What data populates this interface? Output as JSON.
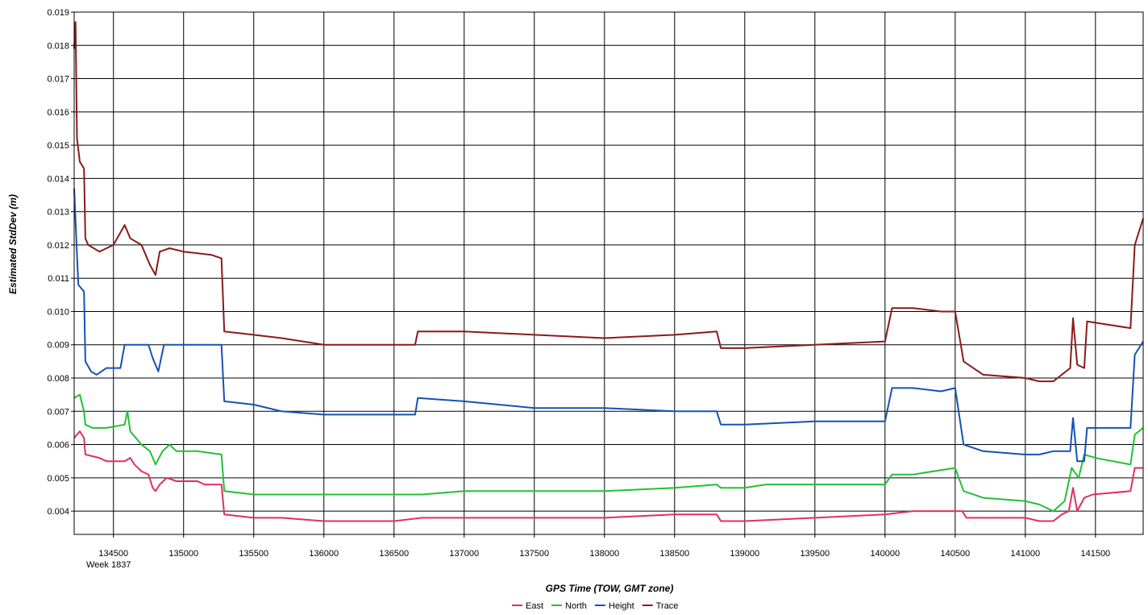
{
  "chart_data": {
    "type": "line",
    "xlabel": "GPS Time (TOW, GMT zone)",
    "ylabel": "Estimated StdDev (m)",
    "week_label": "Week 1837",
    "xlim": [
      134220,
      141840
    ],
    "ylim": [
      0.0033,
      0.019
    ],
    "grid": true,
    "legend_position": "bottom-center",
    "x_ticks": [
      134500,
      135000,
      135500,
      136000,
      136500,
      137000,
      137500,
      138000,
      138500,
      139000,
      139500,
      140000,
      140500,
      141000,
      141500
    ],
    "y_ticks": [
      "0.004",
      "0.005",
      "0.006",
      "0.007",
      "0.008",
      "0.009",
      "0.010",
      "0.011",
      "0.012",
      "0.013",
      "0.014",
      "0.015",
      "0.016",
      "0.017",
      "0.018",
      "0.019"
    ],
    "series": [
      {
        "name": "East",
        "color": "#e0305f",
        "points": [
          [
            134220,
            0.0062
          ],
          [
            134260,
            0.0064
          ],
          [
            134290,
            0.0062
          ],
          [
            134300,
            0.0057
          ],
          [
            134400,
            0.0056
          ],
          [
            134450,
            0.0055
          ],
          [
            134580,
            0.0055
          ],
          [
            134620,
            0.0056
          ],
          [
            134650,
            0.0054
          ],
          [
            134700,
            0.0052
          ],
          [
            134750,
            0.0051
          ],
          [
            134780,
            0.0047
          ],
          [
            134800,
            0.0046
          ],
          [
            134830,
            0.0048
          ],
          [
            134880,
            0.005
          ],
          [
            134950,
            0.0049
          ],
          [
            135100,
            0.0049
          ],
          [
            135150,
            0.0048
          ],
          [
            135270,
            0.0048
          ],
          [
            135290,
            0.0039
          ],
          [
            135500,
            0.0038
          ],
          [
            135700,
            0.0038
          ],
          [
            136000,
            0.0037
          ],
          [
            136500,
            0.0037
          ],
          [
            136700,
            0.0038
          ],
          [
            137000,
            0.0038
          ],
          [
            137500,
            0.0038
          ],
          [
            138000,
            0.0038
          ],
          [
            138500,
            0.0039
          ],
          [
            138800,
            0.0039
          ],
          [
            138830,
            0.0037
          ],
          [
            139000,
            0.0037
          ],
          [
            139500,
            0.0038
          ],
          [
            140000,
            0.0039
          ],
          [
            140200,
            0.004
          ],
          [
            140400,
            0.004
          ],
          [
            140550,
            0.004
          ],
          [
            140580,
            0.0038
          ],
          [
            140800,
            0.0038
          ],
          [
            141000,
            0.0038
          ],
          [
            141100,
            0.0037
          ],
          [
            141200,
            0.0037
          ],
          [
            141260,
            0.0039
          ],
          [
            141310,
            0.004
          ],
          [
            141340,
            0.0047
          ],
          [
            141370,
            0.004
          ],
          [
            141420,
            0.0044
          ],
          [
            141480,
            0.0045
          ],
          [
            141750,
            0.0046
          ],
          [
            141780,
            0.0053
          ],
          [
            141840,
            0.0053
          ]
        ]
      },
      {
        "name": "North",
        "color": "#22c133",
        "points": [
          [
            134220,
            0.0074
          ],
          [
            134260,
            0.0075
          ],
          [
            134290,
            0.007
          ],
          [
            134300,
            0.0066
          ],
          [
            134350,
            0.0065
          ],
          [
            134450,
            0.0065
          ],
          [
            134580,
            0.0066
          ],
          [
            134600,
            0.007
          ],
          [
            134620,
            0.0064
          ],
          [
            134700,
            0.006
          ],
          [
            134760,
            0.0058
          ],
          [
            134800,
            0.0054
          ],
          [
            134850,
            0.0058
          ],
          [
            134900,
            0.006
          ],
          [
            134950,
            0.0058
          ],
          [
            135100,
            0.0058
          ],
          [
            135270,
            0.0057
          ],
          [
            135290,
            0.0046
          ],
          [
            135500,
            0.0045
          ],
          [
            135700,
            0.0045
          ],
          [
            136000,
            0.0045
          ],
          [
            136500,
            0.0045
          ],
          [
            136700,
            0.0045
          ],
          [
            137000,
            0.0046
          ],
          [
            137500,
            0.0046
          ],
          [
            138000,
            0.0046
          ],
          [
            138500,
            0.0047
          ],
          [
            138800,
            0.0048
          ],
          [
            138830,
            0.0047
          ],
          [
            139000,
            0.0047
          ],
          [
            139150,
            0.0048
          ],
          [
            139500,
            0.0048
          ],
          [
            140000,
            0.0048
          ],
          [
            140050,
            0.0051
          ],
          [
            140200,
            0.0051
          ],
          [
            140500,
            0.0053
          ],
          [
            140560,
            0.0046
          ],
          [
            140700,
            0.0044
          ],
          [
            141000,
            0.0043
          ],
          [
            141100,
            0.0042
          ],
          [
            141200,
            0.004
          ],
          [
            141280,
            0.0043
          ],
          [
            141330,
            0.0053
          ],
          [
            141380,
            0.005
          ],
          [
            141420,
            0.0057
          ],
          [
            141500,
            0.0056
          ],
          [
            141750,
            0.0054
          ],
          [
            141780,
            0.0063
          ],
          [
            141840,
            0.0065
          ]
        ]
      },
      {
        "name": "Height",
        "color": "#1452b5",
        "points": [
          [
            134220,
            0.0137
          ],
          [
            134240,
            0.0117
          ],
          [
            134250,
            0.0108
          ],
          [
            134290,
            0.0106
          ],
          [
            134300,
            0.0085
          ],
          [
            134340,
            0.0082
          ],
          [
            134380,
            0.0081
          ],
          [
            134450,
            0.0083
          ],
          [
            134550,
            0.0083
          ],
          [
            134580,
            0.009
          ],
          [
            134750,
            0.009
          ],
          [
            134780,
            0.0086
          ],
          [
            134820,
            0.0082
          ],
          [
            134860,
            0.009
          ],
          [
            135000,
            0.009
          ],
          [
            135270,
            0.009
          ],
          [
            135290,
            0.0073
          ],
          [
            135500,
            0.0072
          ],
          [
            135700,
            0.007
          ],
          [
            136000,
            0.0069
          ],
          [
            136500,
            0.0069
          ],
          [
            136650,
            0.0069
          ],
          [
            136670,
            0.0074
          ],
          [
            137000,
            0.0073
          ],
          [
            137500,
            0.0071
          ],
          [
            138000,
            0.0071
          ],
          [
            138500,
            0.007
          ],
          [
            138800,
            0.007
          ],
          [
            138830,
            0.0066
          ],
          [
            139000,
            0.0066
          ],
          [
            139500,
            0.0067
          ],
          [
            140000,
            0.0067
          ],
          [
            140050,
            0.0077
          ],
          [
            140200,
            0.0077
          ],
          [
            140400,
            0.0076
          ],
          [
            140500,
            0.0077
          ],
          [
            140560,
            0.006
          ],
          [
            140700,
            0.0058
          ],
          [
            141000,
            0.0057
          ],
          [
            141100,
            0.0057
          ],
          [
            141200,
            0.0058
          ],
          [
            141320,
            0.0058
          ],
          [
            141340,
            0.0068
          ],
          [
            141370,
            0.0055
          ],
          [
            141420,
            0.0055
          ],
          [
            141440,
            0.0065
          ],
          [
            141750,
            0.0065
          ],
          [
            141780,
            0.0087
          ],
          [
            141840,
            0.0091
          ]
        ]
      },
      {
        "name": "Trace",
        "color": "#8b1a1a",
        "points": [
          [
            134220,
            0.0179
          ],
          [
            134230,
            0.0187
          ],
          [
            134240,
            0.0152
          ],
          [
            134260,
            0.0145
          ],
          [
            134290,
            0.0143
          ],
          [
            134300,
            0.0122
          ],
          [
            134320,
            0.012
          ],
          [
            134400,
            0.0118
          ],
          [
            134500,
            0.012
          ],
          [
            134580,
            0.0126
          ],
          [
            134620,
            0.0122
          ],
          [
            134700,
            0.012
          ],
          [
            134760,
            0.0114
          ],
          [
            134800,
            0.0111
          ],
          [
            134830,
            0.0118
          ],
          [
            134900,
            0.0119
          ],
          [
            135000,
            0.0118
          ],
          [
            135200,
            0.0117
          ],
          [
            135270,
            0.0116
          ],
          [
            135290,
            0.0094
          ],
          [
            135500,
            0.0093
          ],
          [
            135700,
            0.0092
          ],
          [
            136000,
            0.009
          ],
          [
            136500,
            0.009
          ],
          [
            136650,
            0.009
          ],
          [
            136670,
            0.0094
          ],
          [
            137000,
            0.0094
          ],
          [
            137500,
            0.0093
          ],
          [
            138000,
            0.0092
          ],
          [
            138500,
            0.0093
          ],
          [
            138800,
            0.0094
          ],
          [
            138830,
            0.0089
          ],
          [
            139000,
            0.0089
          ],
          [
            139500,
            0.009
          ],
          [
            140000,
            0.0091
          ],
          [
            140050,
            0.0101
          ],
          [
            140200,
            0.0101
          ],
          [
            140400,
            0.01
          ],
          [
            140500,
            0.01
          ],
          [
            140560,
            0.0085
          ],
          [
            140700,
            0.0081
          ],
          [
            141000,
            0.008
          ],
          [
            141100,
            0.0079
          ],
          [
            141200,
            0.0079
          ],
          [
            141320,
            0.0083
          ],
          [
            141340,
            0.0098
          ],
          [
            141370,
            0.0084
          ],
          [
            141420,
            0.0083
          ],
          [
            141440,
            0.0097
          ],
          [
            141750,
            0.0095
          ],
          [
            141780,
            0.012
          ],
          [
            141840,
            0.0128
          ]
        ]
      }
    ]
  }
}
